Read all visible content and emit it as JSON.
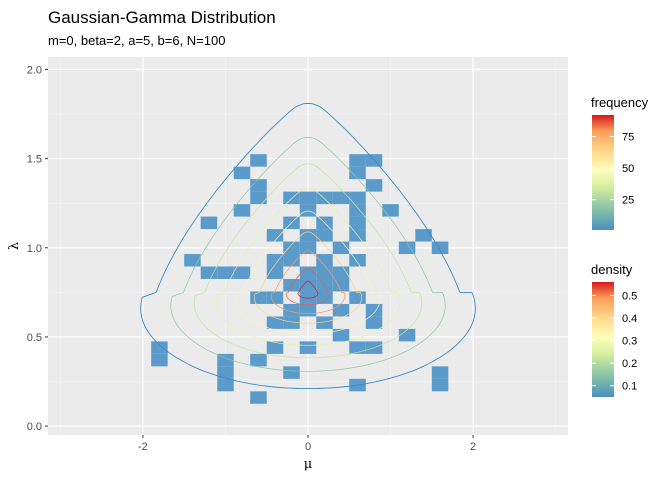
{
  "chart_data": {
    "type": "heatmap",
    "title": "Gaussian-Gamma Distribution",
    "subtitle": "m=0, beta=2, a=5, b=6, N=100",
    "xlabel": "μ",
    "ylabel": "λ",
    "xlim": [
      -3.15,
      3.15
    ],
    "ylim": [
      -0.05,
      2.07
    ],
    "x_ticks": [
      -2,
      0,
      2
    ],
    "x_tick_labels": [
      "-2",
      "0",
      "2"
    ],
    "y_ticks": [
      0.0,
      0.5,
      1.0,
      1.5,
      2.0
    ],
    "y_tick_labels": [
      "0.0",
      "0.5",
      "1.0",
      "1.5",
      "2.0"
    ],
    "grid": true,
    "bin_width": [
      0.2,
      0.07
    ],
    "tiles": [
      {
        "x": -0.6,
        "y": 1.49
      },
      {
        "x": 0.6,
        "y": 1.49
      },
      {
        "x": 0.8,
        "y": 1.49
      },
      {
        "x": -0.8,
        "y": 1.42
      },
      {
        "x": 0.6,
        "y": 1.42
      },
      {
        "x": -0.6,
        "y": 1.35
      },
      {
        "x": 0.8,
        "y": 1.35
      },
      {
        "x": -0.6,
        "y": 1.28
      },
      {
        "x": -0.2,
        "y": 1.28
      },
      {
        "x": 0.0,
        "y": 1.28
      },
      {
        "x": 0.2,
        "y": 1.28
      },
      {
        "x": 0.4,
        "y": 1.28
      },
      {
        "x": 0.6,
        "y": 1.28
      },
      {
        "x": -0.8,
        "y": 1.21
      },
      {
        "x": 0.0,
        "y": 1.21
      },
      {
        "x": 0.6,
        "y": 1.21
      },
      {
        "x": 1.0,
        "y": 1.21
      },
      {
        "x": -1.2,
        "y": 1.14
      },
      {
        "x": -0.2,
        "y": 1.14
      },
      {
        "x": 0.2,
        "y": 1.14
      },
      {
        "x": 0.6,
        "y": 1.14
      },
      {
        "x": -0.4,
        "y": 1.07
      },
      {
        "x": 0.0,
        "y": 1.07
      },
      {
        "x": 0.2,
        "y": 1.07
      },
      {
        "x": 0.6,
        "y": 1.07
      },
      {
        "x": 1.4,
        "y": 1.07
      },
      {
        "x": -0.2,
        "y": 1.0
      },
      {
        "x": 0.0,
        "y": 1.0
      },
      {
        "x": 0.4,
        "y": 1.0
      },
      {
        "x": 1.2,
        "y": 1.0
      },
      {
        "x": 1.6,
        "y": 1.0
      },
      {
        "x": -1.4,
        "y": 0.93
      },
      {
        "x": -0.4,
        "y": 0.93
      },
      {
        "x": -0.2,
        "y": 0.93
      },
      {
        "x": 0.2,
        "y": 0.93
      },
      {
        "x": 0.6,
        "y": 0.93
      },
      {
        "x": -1.2,
        "y": 0.86
      },
      {
        "x": -1.0,
        "y": 0.86
      },
      {
        "x": -0.8,
        "y": 0.86
      },
      {
        "x": -0.4,
        "y": 0.86
      },
      {
        "x": 0.0,
        "y": 0.86
      },
      {
        "x": 0.2,
        "y": 0.86
      },
      {
        "x": 0.4,
        "y": 0.86
      },
      {
        "x": -0.2,
        "y": 0.79
      },
      {
        "x": 0.0,
        "y": 0.79
      },
      {
        "x": 0.2,
        "y": 0.79
      },
      {
        "x": 0.4,
        "y": 0.79
      },
      {
        "x": -0.6,
        "y": 0.72
      },
      {
        "x": -0.4,
        "y": 0.72
      },
      {
        "x": 0.0,
        "y": 0.72
      },
      {
        "x": 0.2,
        "y": 0.72
      },
      {
        "x": 0.6,
        "y": 0.72
      },
      {
        "x": -0.2,
        "y": 0.65
      },
      {
        "x": 0.0,
        "y": 0.65
      },
      {
        "x": 0.4,
        "y": 0.65
      },
      {
        "x": 0.8,
        "y": 0.65
      },
      {
        "x": -0.4,
        "y": 0.58
      },
      {
        "x": -0.2,
        "y": 0.58
      },
      {
        "x": 0.2,
        "y": 0.58
      },
      {
        "x": 0.8,
        "y": 0.58
      },
      {
        "x": 0.4,
        "y": 0.51
      },
      {
        "x": 1.2,
        "y": 0.51
      },
      {
        "x": -1.8,
        "y": 0.44
      },
      {
        "x": -0.4,
        "y": 0.44
      },
      {
        "x": 0.0,
        "y": 0.44
      },
      {
        "x": 0.6,
        "y": 0.44
      },
      {
        "x": 0.8,
        "y": 0.44
      },
      {
        "x": -1.8,
        "y": 0.37
      },
      {
        "x": -1.0,
        "y": 0.37
      },
      {
        "x": -0.6,
        "y": 0.37
      },
      {
        "x": -0.2,
        "y": 0.3
      },
      {
        "x": -1.0,
        "y": 0.23
      },
      {
        "x": 0.6,
        "y": 0.23
      },
      {
        "x": 1.6,
        "y": 0.23
      },
      {
        "x": -0.6,
        "y": 0.16
      },
      {
        "x": -1.0,
        "y": 0.3
      },
      {
        "x": 1.6,
        "y": 0.3
      }
    ],
    "tile_color": "#5b9bcc",
    "contour_peak": [
      0.0,
      0.75
    ],
    "contour_colors": [
      "#3a8bc2",
      "#88c9a1",
      "#c4e59a",
      "#e6f4a0",
      "#f7f7b5",
      "#fdd380",
      "#fa9b58",
      "#e8604a",
      "#d7191c"
    ],
    "legend": {
      "frequency": {
        "title": "frequency",
        "ticks": [
          25,
          50,
          75
        ],
        "tick_labels": [
          "25",
          "50",
          "75"
        ],
        "range": [
          1,
          92
        ]
      },
      "density": {
        "title": "density",
        "ticks": [
          0.1,
          0.2,
          0.3,
          0.4,
          0.5
        ],
        "tick_labels": [
          "0.1",
          "0.2",
          "0.3",
          "0.4",
          "0.5"
        ],
        "range": [
          0.05,
          0.56
        ]
      },
      "palette": [
        "#5e9ccb",
        "#86c2a6",
        "#cfe8a0",
        "#fefebb",
        "#fed586",
        "#fb9c59",
        "#d7191c"
      ]
    }
  }
}
